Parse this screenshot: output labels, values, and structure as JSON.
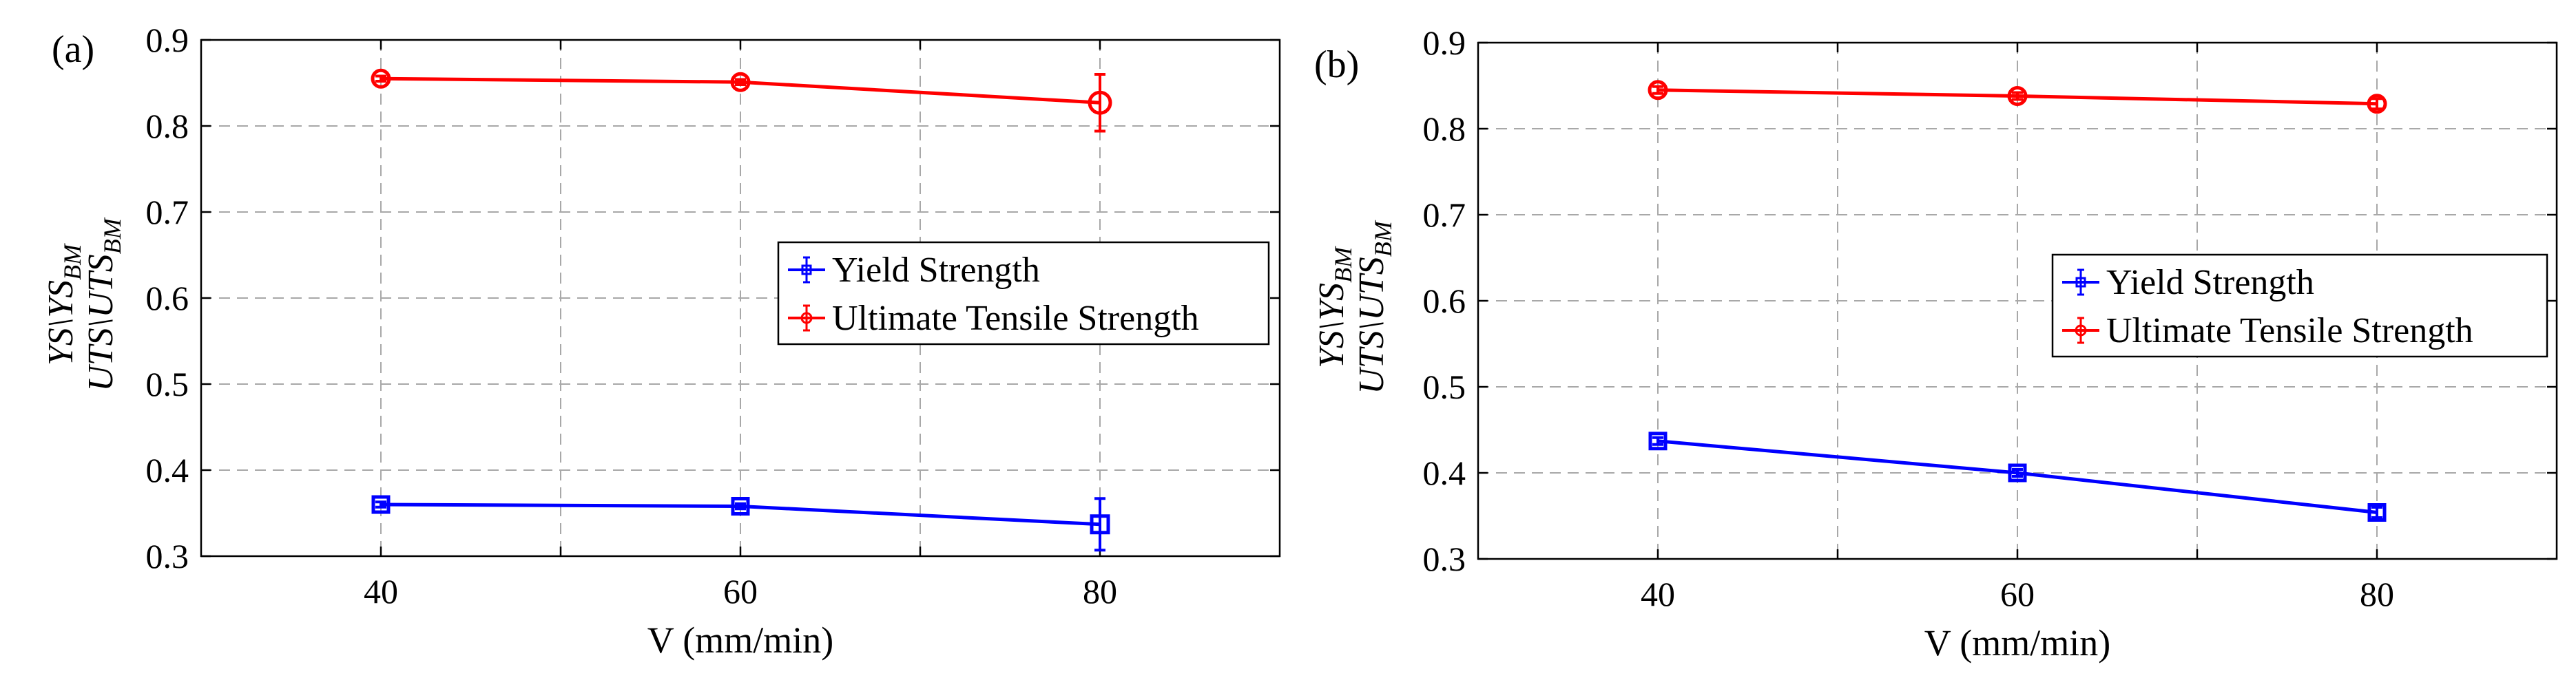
{
  "chart_data": [
    {
      "type": "line",
      "panel_label": "(a)",
      "xlabel": "V (mm/min)",
      "ylabel": {
        "line1": {
          "main": "YS\\YS",
          "sub": "BM"
        },
        "line2": {
          "main": "UTS\\UTS",
          "sub": "BM"
        }
      },
      "xlim": [
        30,
        90
      ],
      "ylim": [
        0.3,
        0.9
      ],
      "xticks": [
        40,
        60,
        80
      ],
      "xgrid": [
        40,
        50,
        60,
        70,
        80
      ],
      "yticks": [
        "0.3",
        "0.4",
        "0.5",
        "0.6",
        "0.7",
        "0.8",
        "0.9"
      ],
      "grid": true,
      "legend_position": "center-right",
      "series": [
        {
          "name": "Yield Strength",
          "color": "#0000ff",
          "marker": "square",
          "x": [
            40,
            60,
            80
          ],
          "values": [
            0.36,
            0.358,
            0.337
          ],
          "errors": [
            0.003,
            0.003,
            0.03
          ]
        },
        {
          "name": "Ultimate Tensile Strength",
          "color": "#ff0000",
          "marker": "circle",
          "x": [
            40,
            60,
            80
          ],
          "values": [
            0.855,
            0.851,
            0.827
          ],
          "errors": [
            0.003,
            0.003,
            0.033
          ]
        }
      ]
    },
    {
      "type": "line",
      "panel_label": "(b)",
      "xlabel": "V (mm/min)",
      "ylabel": {
        "line1": {
          "main": "YS\\YS",
          "sub": "BM"
        },
        "line2": {
          "main": "UTS\\UTS",
          "sub": "BM"
        }
      },
      "xlim": [
        30,
        90
      ],
      "ylim": [
        0.3,
        0.9
      ],
      "xticks": [
        40,
        60,
        80
      ],
      "xgrid": [
        40,
        50,
        60,
        70,
        80
      ],
      "yticks": [
        "0.3",
        "0.4",
        "0.5",
        "0.6",
        "0.7",
        "0.8",
        "0.9"
      ],
      "grid": true,
      "legend_position": "center-right",
      "series": [
        {
          "name": "Yield Strength",
          "color": "#0000ff",
          "marker": "square",
          "x": [
            40,
            60,
            80
          ],
          "values": [
            0.437,
            0.4,
            0.354
          ],
          "errors": [
            0.004,
            0.004,
            0.006
          ]
        },
        {
          "name": "Ultimate Tensile Strength",
          "color": "#ff0000",
          "marker": "circle",
          "x": [
            40,
            60,
            80
          ],
          "values": [
            0.845,
            0.838,
            0.829
          ],
          "errors": [
            0.004,
            0.004,
            0.006
          ]
        }
      ]
    }
  ]
}
